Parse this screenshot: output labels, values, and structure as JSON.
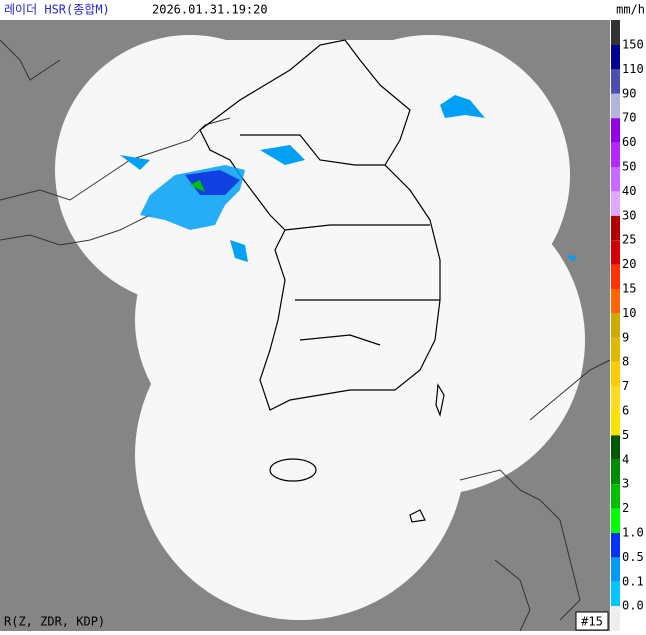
{
  "header": {
    "title": "레이더 HSR(종합M)",
    "time": "2026.01.31.19:20",
    "unit": "mm/h"
  },
  "legend": {
    "labels": [
      "150",
      "110",
      "90",
      "70",
      "60",
      "50",
      "40",
      "30",
      "25",
      "20",
      "15",
      "10",
      "9",
      "8",
      "7",
      "6",
      "5",
      "4",
      "3",
      "2",
      "1.0",
      "0.5",
      "0.1",
      "0.0"
    ],
    "colors": [
      "#000390",
      "#4c4eb1",
      "#b3b4de",
      "#9300e4",
      "#b329ff",
      "#c969ff",
      "#e0a9ff",
      "#b40000",
      "#d20000",
      "#ff3200",
      "#ff6600",
      "#ccaa00",
      "#e0b900",
      "#f9cd00",
      "#ffdc1f",
      "#ffe100",
      "#005a00",
      "#008c00",
      "#00be00",
      "#00ff00",
      "#0033f5",
      "#009bf5",
      "#00c8ff",
      "#eeeeee"
    ]
  },
  "footer": {
    "method": "R(Z, ZDR, KDP)",
    "frame": "#15"
  }
}
